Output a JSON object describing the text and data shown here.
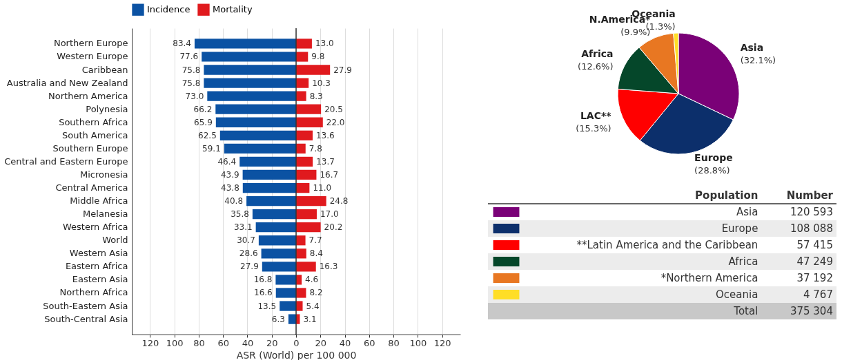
{
  "chart_data": [
    {
      "type": "bar",
      "orientation": "horizontal",
      "xlabel": "ASR (World) per 100 000",
      "categories": [
        "Northern Europe",
        "Western Europe",
        "Caribbean",
        "Australia and New Zealand",
        "Northern America",
        "Polynesia",
        "Southern Africa",
        "South America",
        "Southern Europe",
        "Central and Eastern Europe",
        "Micronesia",
        "Central America",
        "Middle Africa",
        "Melanesia",
        "Western Africa",
        "World",
        "Western Asia",
        "Eastern Africa",
        "Eastern Asia",
        "Northern Africa",
        "South-Eastern Asia",
        "South-Central Asia"
      ],
      "series": [
        {
          "name": "Incidence",
          "color": "#0b52a3",
          "values": [
            83.4,
            77.6,
            75.8,
            75.8,
            73.0,
            66.2,
            65.9,
            62.5,
            59.1,
            46.4,
            43.9,
            43.8,
            40.8,
            35.8,
            33.1,
            30.7,
            28.6,
            27.9,
            16.8,
            16.6,
            13.5,
            6.3
          ],
          "base": [
            -83.4,
            -77.6,
            -75.8,
            -75.8,
            -73.0,
            -66.2,
            -65.9,
            -62.5,
            -59.1,
            -46.4,
            -43.9,
            -43.8,
            -40.8,
            -35.8,
            -33.1,
            -30.7,
            -28.6,
            -27.9,
            -16.8,
            -16.6,
            -13.5,
            -6.3
          ],
          "value_labels": [
            "83.4",
            "77.6",
            "75.8",
            "75.8",
            "73.0",
            "66.2",
            "65.9",
            "62.5",
            "59.1",
            "46.4",
            "43.9",
            "43.8",
            "40.8",
            "35.8",
            "33.1",
            "30.7",
            "28.6",
            "27.9",
            "16.8",
            "16.6",
            "13.5",
            "6.3"
          ]
        },
        {
          "name": "Mortality",
          "color": "#e01a1e",
          "values": [
            13.0,
            9.8,
            27.9,
            10.3,
            8.3,
            20.5,
            22.0,
            13.6,
            7.8,
            13.7,
            16.7,
            11.0,
            24.8,
            17.0,
            20.2,
            7.7,
            8.4,
            16.3,
            4.6,
            8.2,
            5.4,
            3.1
          ],
          "value_labels": [
            "13.0",
            "9.8",
            "27.9",
            "10.3",
            "8.3",
            "20.5",
            "22.0",
            "13.6",
            "7.8",
            "13.7",
            "16.7",
            "11.0",
            "24.8",
            "17.0",
            "20.2",
            "7.7",
            "8.4",
            "16.3",
            "4.6",
            "8.2",
            "5.4",
            "3.1"
          ]
        }
      ],
      "xlim": [
        -135,
        135
      ],
      "xticks": [
        {
          "value": -120,
          "label": "120"
        },
        {
          "value": -100,
          "label": "100"
        },
        {
          "value": -80,
          "label": "80"
        },
        {
          "value": -60,
          "label": "60"
        },
        {
          "value": -40,
          "label": "40"
        },
        {
          "value": -20,
          "label": "20"
        },
        0,
        20,
        40,
        60,
        80,
        100,
        120
      ],
      "ref_lines": [
        {
          "axis": "x",
          "value": 0,
          "color": "#333333"
        }
      ],
      "grid": "x",
      "legend": "top"
    },
    {
      "type": "pie",
      "categories": [
        "Asia",
        "Europe",
        "LAC**",
        "Africa",
        "N.America*",
        "Oceania"
      ],
      "values": [
        32.1,
        28.8,
        15.3,
        12.6,
        9.9,
        1.3
      ],
      "value_labels": [
        "(32.1%)",
        "(28.8%)",
        "(15.3%)",
        "(12.6%)",
        "(9.9%)",
        "(1.3%)"
      ],
      "colors": [
        "#7a0177",
        "#0c2f6b",
        "#ff0000",
        "#05472a",
        "#e87722",
        "#ffde26"
      ]
    },
    {
      "type": "other",
      "annotations": [
        "Population",
        "Number",
        "Total"
      ],
      "categories": [
        "Asia",
        "Europe",
        "**Latin America and the Caribbean",
        "Africa",
        "*Northern America",
        "Oceania"
      ],
      "values": [
        120593,
        108088,
        57415,
        47249,
        37192,
        4767
      ],
      "value_labels": [
        "120 593",
        "108 088",
        "57 415",
        "47 249",
        "37 192",
        "4 767"
      ],
      "colors": [
        "#7a0177",
        "#0c2f6b",
        "#ff0000",
        "#05472a",
        "#e87722",
        "#ffde26"
      ],
      "totals": [
        "375 304"
      ]
    }
  ]
}
